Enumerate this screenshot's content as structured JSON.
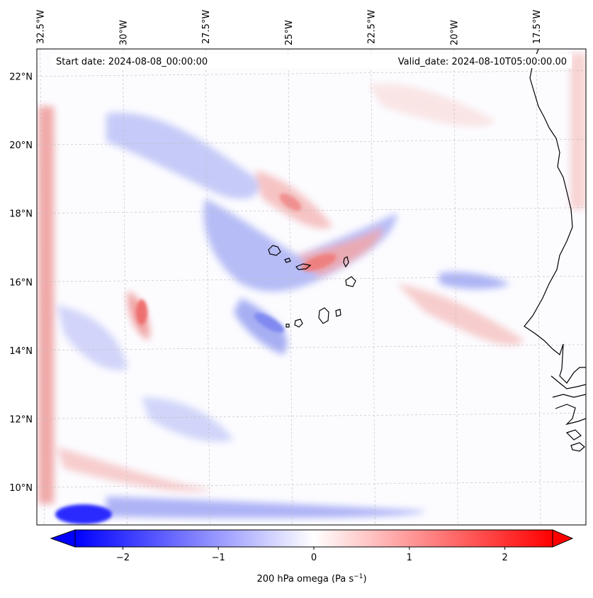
{
  "chart_data": {
    "type": "heatmap",
    "title": "",
    "start_label": "Start date: 2024-08-08_00:00:00",
    "valid_label": "Valid_date: 2024-08-10T05:00:00.00",
    "lon_ticks": [
      "32.5°W",
      "30°W",
      "27.5°W",
      "25°W",
      "22.5°W",
      "20°W",
      "17.5°W"
    ],
    "lon_values": [
      -32.5,
      -30,
      -27.5,
      -25,
      -22.5,
      -20,
      -17.5
    ],
    "lat_ticks": [
      "22°N",
      "20°N",
      "18°N",
      "16°N",
      "14°N",
      "12°N",
      "10°N"
    ],
    "lat_values": [
      22,
      20,
      18,
      16,
      14,
      12,
      10
    ],
    "lon_range": [
      -32.6,
      -16.0
    ],
    "lat_range": [
      8.9,
      22.8
    ],
    "grid": true,
    "colorbar": {
      "label": "200 hPa omega (Pa s",
      "label_exp": "−1",
      "label_close": ")",
      "ticks": [
        "−2",
        "−1",
        "0",
        "1",
        "2"
      ],
      "tick_values": [
        -2,
        -1,
        0,
        1,
        2
      ],
      "vmin": -2.5,
      "vmax": 2.5,
      "extend": "both",
      "colormap": "bwr"
    },
    "colors": {
      "negative": "#0000ff",
      "zero": "#ffffff",
      "positive": "#ff0000"
    }
  }
}
